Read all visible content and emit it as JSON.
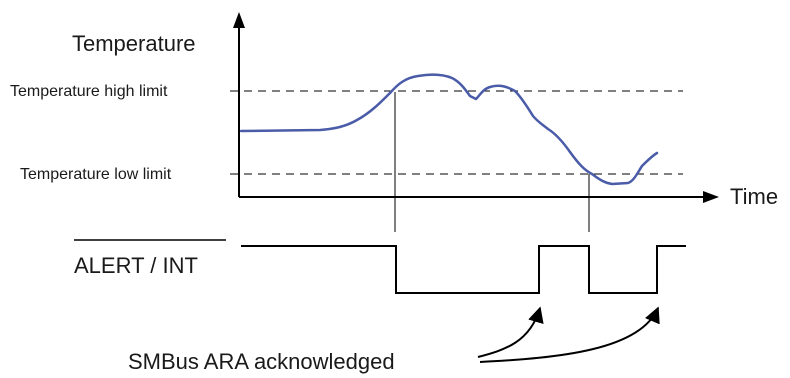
{
  "labels": {
    "y_axis": "Temperature",
    "x_axis": "Time",
    "high_limit": "Temperature high limit",
    "low_limit": "Temperature low limit",
    "signal": "ALERT / INT",
    "annotation": "SMBus ARA acknowledged"
  },
  "colors": {
    "temperature_curve": "#4a5ba8",
    "lines": "#000000"
  }
}
